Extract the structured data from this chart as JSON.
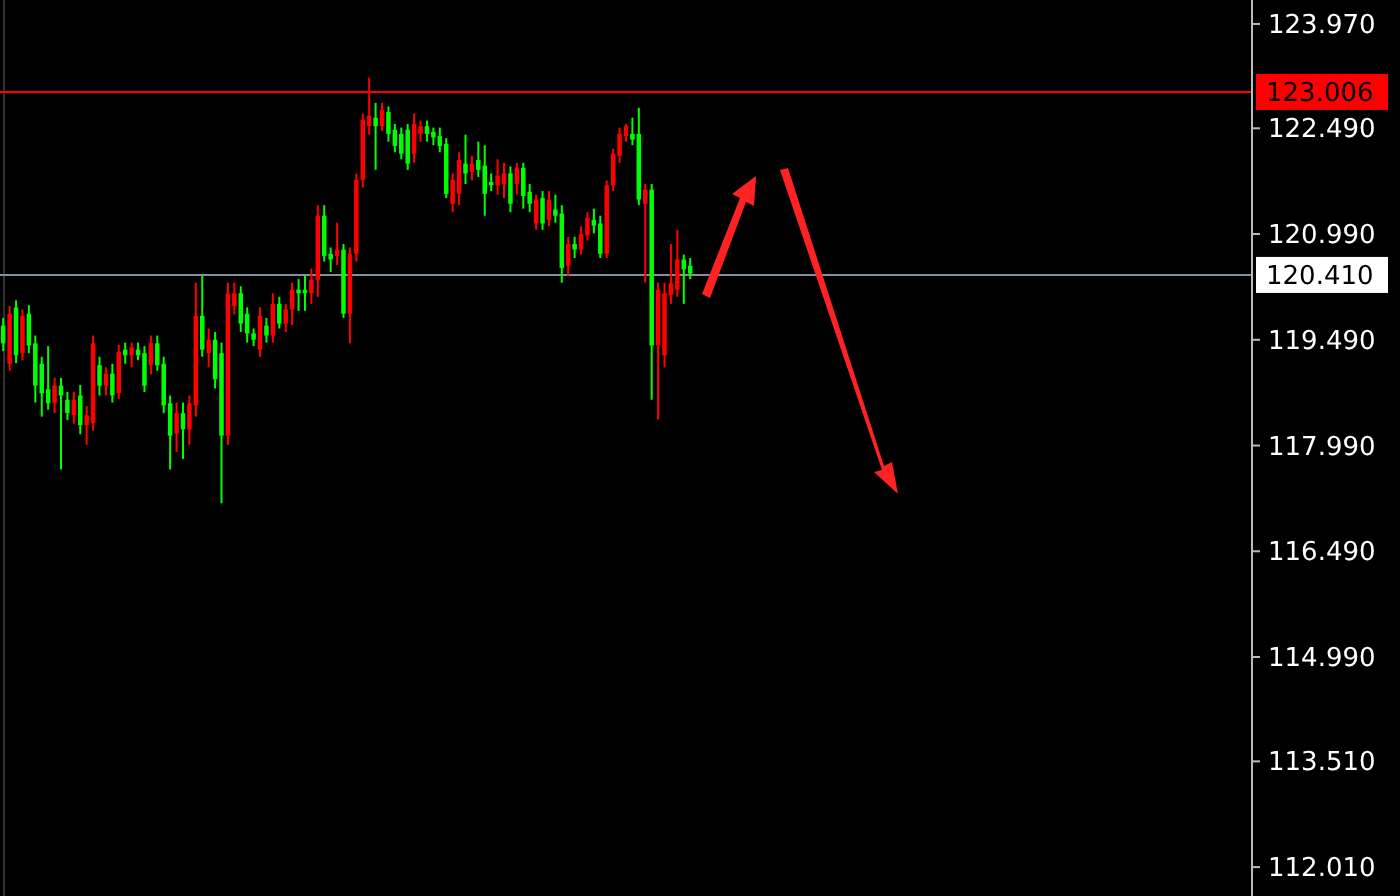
{
  "chart_data": {
    "type": "candlestick",
    "colors": [
      "#00ff00",
      "#ff0000",
      "#00ff00",
      "#ff0000",
      "#00ff00",
      "#00ff00",
      "#00ff00",
      "#00ff00",
      "#ff0000",
      "#00ff00",
      "#00ff00",
      "#ff0000",
      "#00ff00",
      "#ff0000",
      "#ff0000",
      "#00ff00",
      "#ff0000",
      "#00ff00",
      "#ff0000",
      "#00ff00",
      "#ff0000",
      "#00ff00",
      "#00ff00",
      "#ff0000",
      "#00ff00",
      "#00ff00",
      "#00ff00",
      "#ff0000",
      "#00ff00",
      "#ff0000",
      "#ff0000",
      "#00ff00",
      "#ff0000",
      "#00ff00",
      "#00ff00",
      "#ff0000",
      "#ff0000",
      "#00ff00",
      "#00ff00",
      "#00ff00",
      "#ff0000",
      "#00ff00",
      "#ff0000",
      "#00ff00",
      "#ff0000",
      "#ff0000",
      "#00ff00",
      "#00ff00",
      "#ff0000",
      "#ff0000",
      "#00ff00",
      "#00ff00",
      "#ff0000",
      "#00ff00",
      "#ff0000",
      "#ff0000",
      "#ff0000",
      "#ff0000",
      "#00ff00",
      "#ff0000",
      "#00ff00",
      "#00ff00",
      "#00ff00",
      "#00ff00",
      "#ff0000",
      "#ff0000",
      "#00ff00",
      "#00ff00",
      "#00ff00",
      "#00ff00",
      "#ff0000",
      "#ff0000",
      "#00ff00",
      "#ff0000",
      "#00ff00",
      "#00ff00",
      "#00ff00",
      "#ff0000",
      "#ff0000",
      "#00ff00",
      "#ff0000",
      "#00ff00",
      "#00ff00",
      "#ff0000",
      "#00ff00",
      "#ff0000",
      "#00ff00",
      "#00ff00",
      "#ff0000",
      "#00ff00",
      "#ff0000",
      "#ff0000",
      "#00ff00",
      "#00ff00",
      "#ff0000",
      "#ff0000",
      "#ff0000",
      "#ff0000",
      "#00ff00",
      "#00ff00",
      "#ff0000",
      "#00ff00",
      "#ff0000",
      "#ff0000",
      "#ff0000",
      "#ff0000",
      "#00ff00",
      "#00ff00",
      null,
      null,
      null,
      null,
      null,
      null,
      null,
      null,
      null,
      null,
      null,
      null,
      null,
      null,
      null,
      null,
      null,
      null,
      null,
      null,
      null,
      null,
      null,
      null,
      null,
      null,
      null,
      null,
      null,
      null,
      null,
      null,
      null,
      null,
      null,
      null,
      null,
      null,
      null,
      null,
      null,
      null,
      null,
      null,
      null,
      null,
      null,
      null,
      null,
      null,
      null,
      null,
      null,
      null,
      null,
      null,
      null,
      null,
      null,
      null,
      null,
      null,
      null,
      null,
      null,
      null,
      null,
      null,
      null,
      null,
      null,
      null,
      null,
      null,
      null,
      null,
      null,
      null,
      null,
      null,
      null,
      null,
      null,
      null,
      null,
      null,
      null
    ],
    "ylim": [
      111.6,
      124.31
    ],
    "yticks": [
      {
        "value": 123.97,
        "label": "123.970"
      },
      {
        "value": 122.49,
        "label": "122.490"
      },
      {
        "value": 120.99,
        "label": "120.990"
      },
      {
        "value": 119.49,
        "label": "119.490"
      },
      {
        "value": 117.99,
        "label": "117.990"
      },
      {
        "value": 116.49,
        "label": "116.490"
      },
      {
        "value": 114.99,
        "label": "114.990"
      },
      {
        "value": 113.51,
        "label": "113.510"
      },
      {
        "value": 112.01,
        "label": "112.010"
      }
    ],
    "tick_labels": "y",
    "ref_lines": [
      {
        "axis": "y",
        "value": 123.006,
        "label": "123.006",
        "color": "#ff0000"
      },
      {
        "axis": "y",
        "value": 120.41,
        "label": "120.410",
        "color": "#8090a0"
      }
    ],
    "categories": [
      null,
      null,
      null,
      null,
      null,
      null,
      null,
      null,
      null,
      null,
      null,
      null,
      null,
      null,
      null,
      null,
      null,
      null,
      null,
      null,
      null,
      null,
      null,
      null,
      null,
      null,
      null,
      null,
      null,
      null,
      null,
      null,
      null,
      null,
      null,
      null,
      null,
      null,
      null,
      null,
      null,
      null,
      null,
      null,
      null,
      null,
      null,
      null,
      null,
      null,
      null,
      null,
      null,
      null,
      null,
      null,
      null,
      null,
      null,
      null,
      null,
      null,
      null,
      null,
      null,
      null,
      null,
      null,
      null,
      null,
      null,
      null,
      null,
      null,
      null,
      null,
      null,
      null,
      null,
      null,
      null,
      null,
      null,
      null,
      null,
      null,
      null,
      null,
      null,
      null,
      null,
      null,
      null,
      null,
      null,
      null,
      null,
      null,
      null,
      null,
      null,
      null,
      null,
      null,
      null,
      null,
      null,
      null,
      null,
      null,
      null,
      null,
      null,
      null,
      null,
      null,
      null,
      null,
      null,
      null,
      null,
      null,
      null,
      null,
      null,
      null,
      null,
      null,
      null,
      null,
      null,
      null,
      null,
      null,
      null,
      null,
      null,
      null,
      null,
      null,
      null,
      null,
      null,
      null,
      null,
      null,
      null,
      null,
      null,
      null,
      null,
      null,
      null,
      null,
      null,
      null,
      null,
      null,
      null,
      null,
      null,
      null,
      null,
      null,
      null,
      null,
      null,
      null,
      null,
      null,
      null,
      null,
      null,
      null,
      null,
      null,
      null,
      null,
      null,
      null,
      null,
      null,
      null,
      null,
      null,
      null,
      null,
      null,
      null,
      null,
      null,
      null,
      null,
      null,
      null
    ],
    "ohlc": [
      [
        119.44,
        119.8,
        119.33,
        119.69
      ],
      [
        119.86,
        119.97,
        119.05,
        119.15
      ],
      [
        119.27,
        120.05,
        119.16,
        119.95
      ],
      [
        119.83,
        119.92,
        119.2,
        119.3
      ],
      [
        119.41,
        119.98,
        119.3,
        119.86
      ],
      [
        118.84,
        119.55,
        118.6,
        119.44
      ],
      [
        118.73,
        119.25,
        118.4,
        119.15
      ],
      [
        118.59,
        119.4,
        118.5,
        118.79
      ],
      [
        118.84,
        118.95,
        118.45,
        118.59
      ],
      [
        118.7,
        118.95,
        117.65,
        118.84
      ],
      [
        118.45,
        118.75,
        118.35,
        118.64
      ],
      [
        118.64,
        118.75,
        118.3,
        118.42
      ],
      [
        118.28,
        118.85,
        118.15,
        118.7
      ],
      [
        118.42,
        118.55,
        118.0,
        118.28
      ],
      [
        119.44,
        119.55,
        118.2,
        118.31
      ],
      [
        118.84,
        119.25,
        118.7,
        119.13
      ],
      [
        119.01,
        119.1,
        118.7,
        118.84
      ],
      [
        118.7,
        119.15,
        118.6,
        119.01
      ],
      [
        119.32,
        119.42,
        118.65,
        118.73
      ],
      [
        119.27,
        119.45,
        119.15,
        119.35
      ],
      [
        119.38,
        119.45,
        119.1,
        119.27
      ],
      [
        119.27,
        119.45,
        119.2,
        119.35
      ],
      [
        118.84,
        119.4,
        118.75,
        119.3
      ],
      [
        119.44,
        119.55,
        119.0,
        119.13
      ],
      [
        119.13,
        119.55,
        119.05,
        119.44
      ],
      [
        118.56,
        119.25,
        118.45,
        119.15
      ],
      [
        118.13,
        118.7,
        117.65,
        118.59
      ],
      [
        118.45,
        118.6,
        117.9,
        118.16
      ],
      [
        118.22,
        118.6,
        117.8,
        118.45
      ],
      [
        118.59,
        118.7,
        118.0,
        118.22
      ],
      [
        119.83,
        120.3,
        118.4,
        118.56
      ],
      [
        119.35,
        120.4,
        119.25,
        119.83
      ],
      [
        119.49,
        119.65,
        119.1,
        119.3
      ],
      [
        118.93,
        119.6,
        118.8,
        119.49
      ],
      [
        118.13,
        119.45,
        117.17,
        119.3
      ],
      [
        120.15,
        120.3,
        118.0,
        118.13
      ],
      [
        120.15,
        120.3,
        119.85,
        119.97
      ],
      [
        119.72,
        120.25,
        119.6,
        120.15
      ],
      [
        119.58,
        119.95,
        119.45,
        119.86
      ],
      [
        119.49,
        119.65,
        119.4,
        119.58
      ],
      [
        119.83,
        119.95,
        119.25,
        119.35
      ],
      [
        119.55,
        119.8,
        119.45,
        119.69
      ],
      [
        120.0,
        120.15,
        119.45,
        119.55
      ],
      [
        119.72,
        120.1,
        119.65,
        120.0
      ],
      [
        119.92,
        120.0,
        119.6,
        119.72
      ],
      [
        120.2,
        120.3,
        119.7,
        119.92
      ],
      [
        120.15,
        120.35,
        119.9,
        120.2
      ],
      [
        120.15,
        120.4,
        119.9,
        120.2
      ],
      [
        120.34,
        120.5,
        120.0,
        120.15
      ],
      [
        121.25,
        121.4,
        120.1,
        120.34
      ],
      [
        120.68,
        121.4,
        120.6,
        121.25
      ],
      [
        120.63,
        120.8,
        120.45,
        120.71
      ],
      [
        120.77,
        121.15,
        120.55,
        120.68
      ],
      [
        119.86,
        120.85,
        119.8,
        120.77
      ],
      [
        120.71,
        120.8,
        119.44,
        119.86
      ],
      [
        121.76,
        121.85,
        120.6,
        120.71
      ],
      [
        122.61,
        122.7,
        121.65,
        121.76
      ],
      [
        122.67,
        123.21,
        122.4,
        122.52
      ],
      [
        122.52,
        122.85,
        121.9,
        122.64
      ],
      [
        122.75,
        122.85,
        122.45,
        122.52
      ],
      [
        122.41,
        122.8,
        122.3,
        122.72
      ],
      [
        122.24,
        122.55,
        122.15,
        122.47
      ],
      [
        122.13,
        122.5,
        122.05,
        122.41
      ],
      [
        121.99,
        122.55,
        121.9,
        122.47
      ],
      [
        122.55,
        122.7,
        122.0,
        122.13
      ],
      [
        122.52,
        122.6,
        122.3,
        122.41
      ],
      [
        122.41,
        122.6,
        122.3,
        122.52
      ],
      [
        122.36,
        122.5,
        122.25,
        122.44
      ],
      [
        122.24,
        122.5,
        122.15,
        122.38
      ],
      [
        121.56,
        122.35,
        121.5,
        122.27
      ],
      [
        121.76,
        121.85,
        121.3,
        121.42
      ],
      [
        122.04,
        122.15,
        121.4,
        121.56
      ],
      [
        121.85,
        122.4,
        121.7,
        121.99
      ],
      [
        121.99,
        122.1,
        121.75,
        121.87
      ],
      [
        121.9,
        122.3,
        121.8,
        122.04
      ],
      [
        121.56,
        122.25,
        121.25,
        121.96
      ],
      [
        121.68,
        121.85,
        121.6,
        121.73
      ],
      [
        121.82,
        122.05,
        121.55,
        121.68
      ],
      [
        121.85,
        122.0,
        121.5,
        121.7
      ],
      [
        121.42,
        121.95,
        121.3,
        121.85
      ],
      [
        121.93,
        122.0,
        121.55,
        121.7
      ],
      [
        121.53,
        122.0,
        121.35,
        121.93
      ],
      [
        121.42,
        121.7,
        121.3,
        121.59
      ],
      [
        121.48,
        121.55,
        121.05,
        121.14
      ],
      [
        121.14,
        121.6,
        121.05,
        121.5
      ],
      [
        121.48,
        121.6,
        121.1,
        121.19
      ],
      [
        121.25,
        121.55,
        121.15,
        121.34
      ],
      [
        120.51,
        121.4,
        120.3,
        121.28
      ],
      [
        120.85,
        120.95,
        120.4,
        120.54
      ],
      [
        120.77,
        120.95,
        120.65,
        120.85
      ],
      [
        120.99,
        121.1,
        120.7,
        120.77
      ],
      [
        121.22,
        121.3,
        120.9,
        120.97
      ],
      [
        121.11,
        121.35,
        121.0,
        121.19
      ],
      [
        120.71,
        121.25,
        120.65,
        121.14
      ],
      [
        121.68,
        121.75,
        120.65,
        120.71
      ],
      [
        122.13,
        122.2,
        121.6,
        121.68
      ],
      [
        122.41,
        122.5,
        122.0,
        122.1
      ],
      [
        122.52,
        122.55,
        122.3,
        122.38
      ],
      [
        122.33,
        122.64,
        122.25,
        122.41
      ],
      [
        121.48,
        122.78,
        121.4,
        122.41
      ],
      [
        121.62,
        121.7,
        120.3,
        121.42
      ],
      [
        119.41,
        121.7,
        118.64,
        121.62
      ],
      [
        120.2,
        120.3,
        118.36,
        119.41
      ],
      [
        120.15,
        120.3,
        119.1,
        119.27
      ],
      [
        120.29,
        120.85,
        120.0,
        120.12
      ],
      [
        120.63,
        121.05,
        120.1,
        120.2
      ],
      [
        120.49,
        120.7,
        120.0,
        120.63
      ],
      [
        120.43,
        120.65,
        120.35,
        120.54
      ],
      null,
      null,
      null,
      null,
      null,
      null,
      null,
      null,
      null,
      null,
      null,
      null,
      null,
      null,
      null,
      null,
      null,
      null,
      null,
      null,
      null,
      null,
      null,
      null,
      null,
      null,
      null,
      null,
      null,
      null,
      null,
      null,
      null,
      null,
      null,
      null,
      null,
      null,
      null,
      null,
      null,
      null,
      null,
      null,
      null,
      null,
      null,
      null,
      null,
      null,
      null,
      null,
      null,
      null,
      null,
      null,
      null,
      null,
      null,
      null,
      null,
      null,
      null,
      null,
      null,
      null,
      null,
      null,
      null,
      null,
      null,
      null,
      null,
      null,
      null,
      null,
      null,
      null,
      null,
      null,
      null,
      null,
      null,
      null,
      null,
      null,
      null
    ]
  }
}
